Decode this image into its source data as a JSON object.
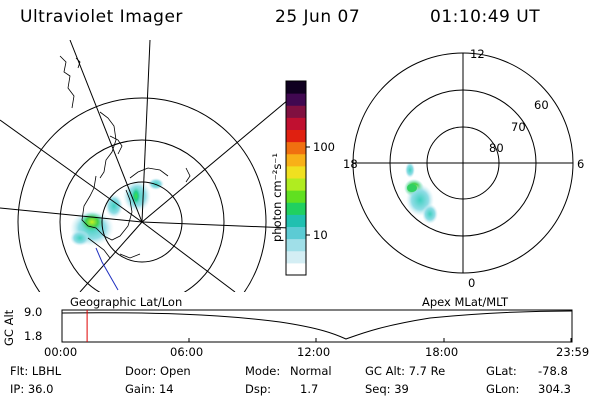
{
  "header": {
    "instrument": "Ultraviolet Imager",
    "date": "25 Jun 07",
    "time": "01:10:49 UT"
  },
  "left_map": {
    "caption": "Geographic Lat/Lon"
  },
  "right_map": {
    "caption": "Apex MLat/MLT",
    "mlt_labels": [
      "12",
      "18",
      "6",
      "0"
    ],
    "lat_labels": [
      "60",
      "70",
      "80"
    ]
  },
  "colorbar": {
    "unit_label": "photon cm⁻²s⁻¹",
    "ticks": [
      "100",
      "10"
    ],
    "scale": "log",
    "colors": [
      "#ffffff",
      "#d4eef4",
      "#a0dfe8",
      "#5ccbd4",
      "#20c0b0",
      "#20d060",
      "#60e020",
      "#b0ec20",
      "#f0e020",
      "#f8b018",
      "#f07010",
      "#e02010",
      "#c01030",
      "#801040",
      "#400850",
      "#100020"
    ]
  },
  "timeline": {
    "ylabel": "GC Alt",
    "yticks": [
      "9.0",
      "1.8"
    ],
    "xticks": [
      "00:00",
      "06:00",
      "12:00",
      "18:00",
      "23:59"
    ],
    "current_time": "01:10:49",
    "marker_color": "#e00000"
  },
  "info": {
    "col1": [
      "Flt: LBHL",
      "IP: 36.0"
    ],
    "col2": [
      "Door: Open",
      "Gain: 14"
    ],
    "col3_labels": [
      "Mode:",
      "Dsp:"
    ],
    "col3_values": [
      "Normal",
      "1.7"
    ],
    "col4": [
      "GC Alt: 7.7 Re",
      "Seq: 39"
    ],
    "col5_labels": [
      "GLat:",
      "GLon:"
    ],
    "col5_values": [
      "-78.8",
      "304.3"
    ]
  }
}
